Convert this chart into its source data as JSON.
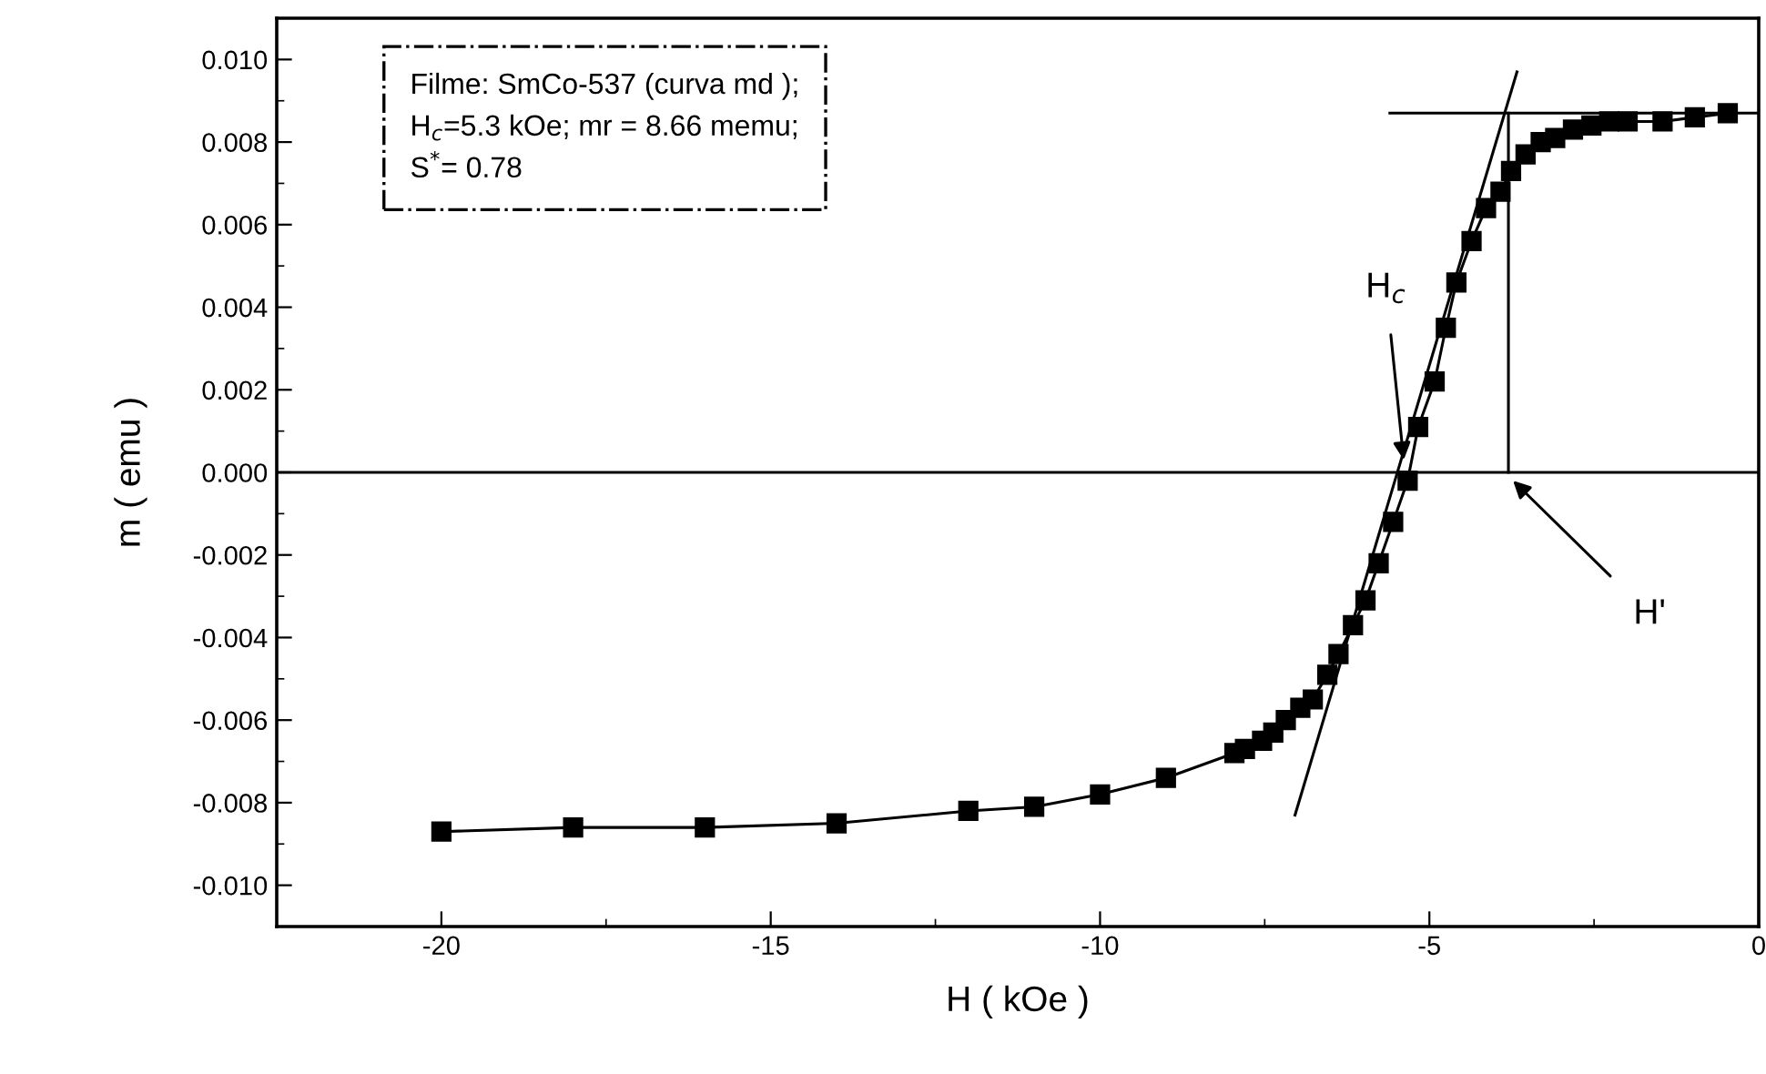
{
  "chart_data": {
    "type": "line",
    "xlabel": "H ( kOe )",
    "ylabel": "m ( emu )",
    "xlim": [
      -22.5,
      0
    ],
    "xticks": [
      -20,
      -15,
      -10,
      -5,
      0
    ],
    "ylim": [
      -0.011,
      0.011
    ],
    "yticks": [
      {
        "value": -0.01,
        "label": "-0.010"
      },
      {
        "value": -0.008,
        "label": "-0.008"
      },
      {
        "value": -0.006,
        "label": "-0.006"
      },
      {
        "value": -0.004,
        "label": "-0.004"
      },
      {
        "value": -0.002,
        "label": "-0.002"
      },
      {
        "value": 0,
        "label": "0.000"
      },
      {
        "value": 0.002,
        "label": "0.002"
      },
      {
        "value": 0.004,
        "label": "0.004"
      },
      {
        "value": 0.006,
        "label": "0.006"
      },
      {
        "value": 0.008,
        "label": "0.008"
      },
      {
        "value": 0.01,
        "label": "0.010"
      }
    ],
    "grid": false,
    "legend": false,
    "series": [
      {
        "color": "#000000",
        "marker": "square",
        "line_style": "solid",
        "x": [
          -20,
          -18,
          -16,
          -14,
          -12,
          -11,
          -10,
          -9,
          -7.96,
          -7.8,
          -7.54,
          -7.37,
          -7.18,
          -6.96,
          -6.77,
          -6.55,
          -6.38,
          -6.16,
          -5.97,
          -5.77,
          -5.55,
          -5.33,
          -5.17,
          -4.92,
          -4.75,
          -4.59,
          -4.36,
          -4.14,
          -3.92,
          -3.76,
          -3.54,
          -3.31,
          -3.09,
          -2.82,
          -2.54,
          -2.27,
          -1.99,
          -1.46,
          -0.97,
          -0.47
        ],
        "values": [
          -0.0087,
          -0.0086,
          -0.0086,
          -0.0085,
          -0.0082,
          -0.0081,
          -0.0078,
          -0.0074,
          -0.0068,
          -0.0067,
          -0.0065,
          -0.0063,
          -0.006,
          -0.0057,
          -0.0055,
          -0.0049,
          -0.0044,
          -0.0037,
          -0.0031,
          -0.0022,
          -0.0012,
          -0.0002,
          0.0011,
          0.0022,
          0.0035,
          0.0046,
          0.0056,
          0.0064,
          0.0068,
          0.0073,
          0.0077,
          0.008,
          0.0081,
          0.0083,
          0.0084,
          0.0085,
          0.0085,
          0.0085,
          0.0086,
          0.0087
        ]
      },
      {
        "color": "#000000",
        "marker": "none",
        "line_style": "solid",
        "x": [
          -7.04,
          -3.67
        ],
        "values": [
          -0.0083,
          0.0097
        ]
      },
      {
        "color": "#000000",
        "marker": "none",
        "line_style": "solid",
        "x": [
          -5.6,
          0
        ],
        "values": [
          0.0087,
          0.0087
        ]
      },
      {
        "color": "#000000",
        "marker": "none",
        "line_style": "solid",
        "x": [
          -3.8,
          -3.8
        ],
        "values": [
          0,
          0.0087
        ]
      }
    ],
    "ref_lines": [
      {
        "axis": "y",
        "value": 0,
        "color": "#000000"
      }
    ],
    "annotations": [
      "Filme: SmCo-537 (curva md );\nH$_{c}$=5.3 kOe; mr = 8.66 memu;\nS$^{*}$= 0.78",
      {
        "text": "H$_{c}$",
        "x": -5.39,
        "y": 0.0003
      },
      {
        "text": "H'",
        "x": -3.73,
        "y": -0.0002
      }
    ]
  }
}
